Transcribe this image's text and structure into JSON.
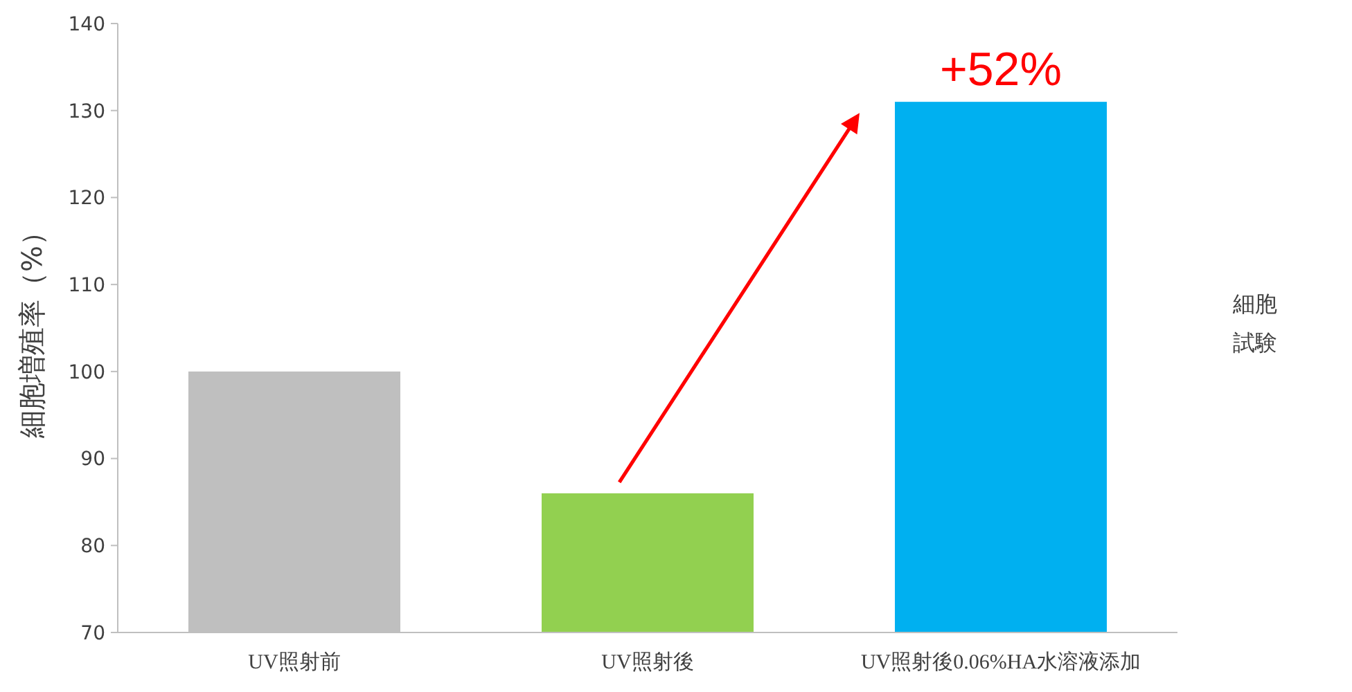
{
  "chart_data": {
    "type": "bar",
    "ylabel": "細胞増殖率（%）",
    "categories": [
      "UV照射前",
      "UV照射後",
      "UV照射後0.06%HA水溶液添加"
    ],
    "values": [
      100,
      86,
      131
    ],
    "colors": [
      "#bfbfbf",
      "#92d050",
      "#00b0f0"
    ],
    "ylim": [
      70,
      140
    ],
    "yticks": [
      70,
      80,
      90,
      100,
      110,
      120,
      130,
      140
    ],
    "grid": false,
    "annotations": [
      {
        "text": "+52%",
        "x": "UV照射後0.06%HA水溶液添加",
        "y": 131
      },
      "細胞",
      "試験"
    ]
  }
}
